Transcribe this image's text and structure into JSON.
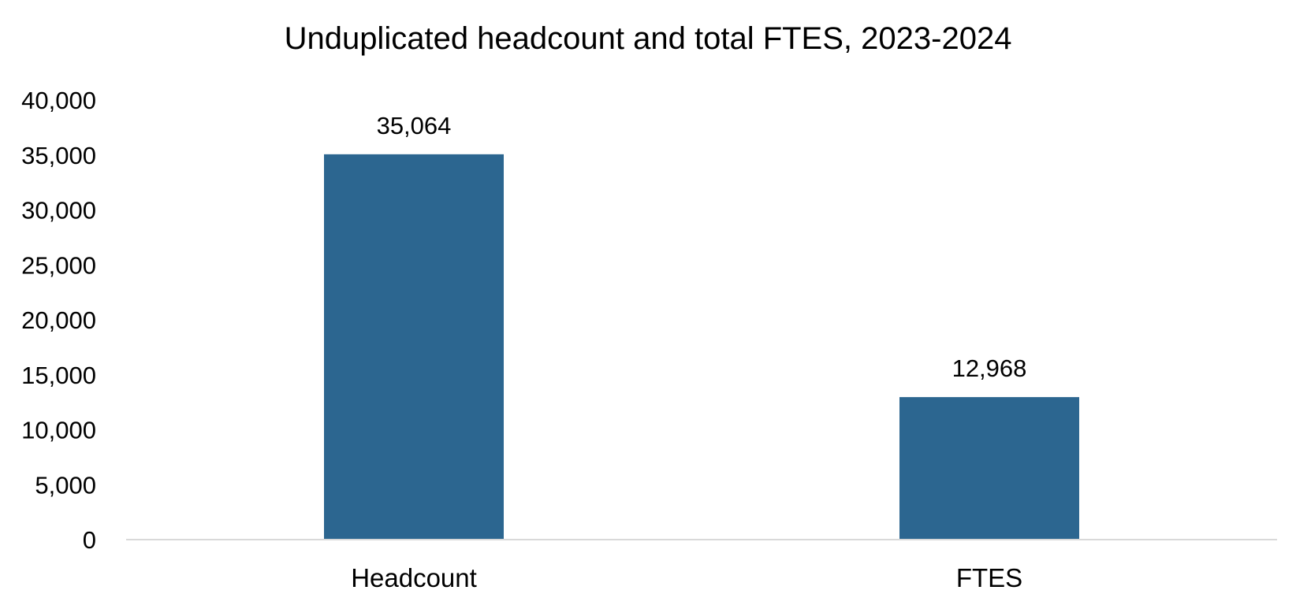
{
  "chart_data": {
    "type": "bar",
    "title": "Unduplicated headcount and total FTES, 2023-2024",
    "categories": [
      "Headcount",
      "FTES"
    ],
    "values": [
      35064,
      12968
    ],
    "data_labels": [
      "35,064",
      "12,968"
    ],
    "xlabel": "",
    "ylabel": "",
    "ylim": [
      0,
      40000
    ],
    "yticks": [
      0,
      5000,
      10000,
      15000,
      20000,
      25000,
      30000,
      35000,
      40000
    ],
    "ytick_labels": [
      "0",
      "5,000",
      "10,000",
      "15,000",
      "20,000",
      "25,000",
      "30,000",
      "35,000",
      "40,000"
    ],
    "grid": false,
    "legend": "none",
    "colors": {
      "bar": "#2C6690",
      "axis": "#D9D9D9",
      "text": "#000000"
    }
  }
}
